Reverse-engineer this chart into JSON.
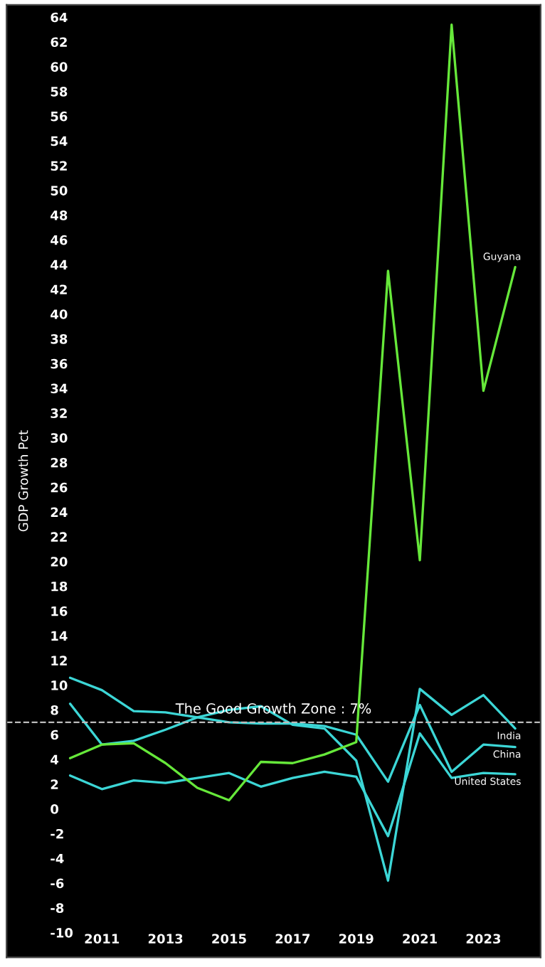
{
  "chart_data": {
    "type": "line",
    "ylabel": "GDP Growth Pct",
    "x": [
      2010,
      2011,
      2012,
      2013,
      2014,
      2015,
      2016,
      2017,
      2018,
      2019,
      2020,
      2021,
      2022,
      2023,
      2024
    ],
    "series": [
      {
        "name": "India",
        "color": "#3cd6d6",
        "values": [
          8.5,
          5.2,
          5.5,
          6.4,
          7.4,
          8.0,
          8.3,
          6.8,
          6.5,
          3.9,
          -5.8,
          9.7,
          7.6,
          9.2,
          6.5
        ]
      },
      {
        "name": "China",
        "color": "#3cd6d6",
        "values": [
          10.6,
          9.6,
          7.9,
          7.8,
          7.4,
          7.0,
          6.9,
          6.9,
          6.7,
          6.0,
          2.2,
          8.4,
          3.0,
          5.2,
          5.0
        ]
      },
      {
        "name": "United States",
        "color": "#3cd6d6",
        "values": [
          2.7,
          1.6,
          2.3,
          2.1,
          2.5,
          2.9,
          1.8,
          2.5,
          3.0,
          2.6,
          -2.2,
          6.1,
          2.5,
          2.9,
          2.8
        ]
      },
      {
        "name": "Guyana",
        "color": "#66e83a",
        "values": [
          4.1,
          5.2,
          5.3,
          3.7,
          1.7,
          0.7,
          3.8,
          3.7,
          4.4,
          5.4,
          43.5,
          20.1,
          63.4,
          33.8,
          43.8
        ]
      }
    ],
    "xlim": [
      2008,
      2024.8
    ],
    "xticks": [
      2011,
      2013,
      2015,
      2017,
      2019,
      2021,
      2023
    ],
    "ylim": [
      -12,
      65
    ],
    "yticks": [
      -10,
      -8,
      -6,
      -4,
      -2,
      0,
      2,
      4,
      6,
      8,
      10,
      12,
      14,
      16,
      18,
      20,
      22,
      24,
      26,
      28,
      30,
      32,
      34,
      36,
      38,
      40,
      42,
      44,
      46,
      48,
      50,
      52,
      54,
      56,
      58,
      60,
      62,
      64
    ],
    "ref_lines": [
      {
        "axis": "y",
        "value": 7,
        "label": "The Good Growth Zone : 7%",
        "color": "#bbbbbb",
        "line_style": "dashed"
      }
    ],
    "grid": false,
    "legend": false
  }
}
